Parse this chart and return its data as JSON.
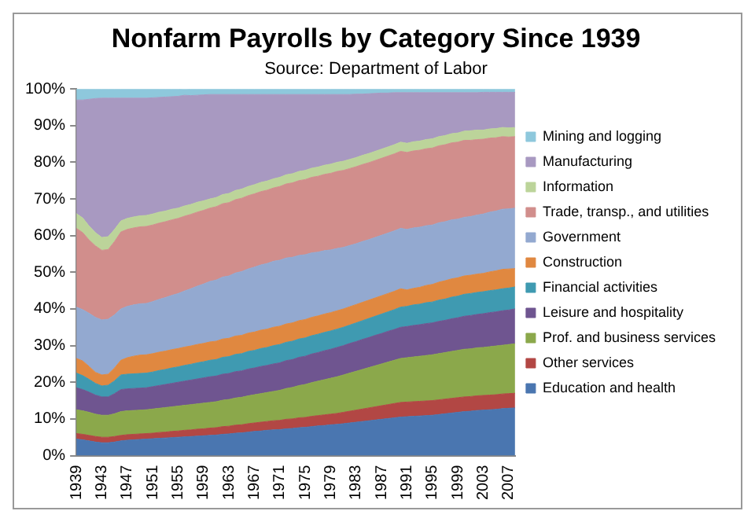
{
  "chart_data": {
    "type": "area",
    "title": "Nonfarm Payrolls by Category Since 1939",
    "subtitle": "Source: Department of Labor",
    "stacked": true,
    "legend": "right",
    "grid": false,
    "categories": [
      "1939",
      null,
      null,
      null,
      "1943",
      null,
      null,
      null,
      "1947",
      null,
      null,
      null,
      "1951",
      null,
      null,
      null,
      "1955",
      null,
      null,
      null,
      "1959",
      null,
      null,
      null,
      "1963",
      null,
      null,
      null,
      "1967",
      null,
      null,
      null,
      "1971",
      null,
      null,
      null,
      "1975",
      null,
      null,
      null,
      "1979",
      null,
      null,
      null,
      "1983",
      null,
      null,
      null,
      "1987",
      null,
      null,
      null,
      "1991",
      null,
      null,
      null,
      "1995",
      null,
      null,
      null,
      "1999",
      null,
      null,
      null,
      "2003",
      null,
      null,
      null,
      "2007",
      null
    ],
    "ylim": [
      0,
      100
    ],
    "yticks": [
      {
        "value": 0,
        "label": "0%"
      },
      {
        "value": 10,
        "label": "10%"
      },
      {
        "value": 20,
        "label": "20%"
      },
      {
        "value": 30,
        "label": "30%"
      },
      {
        "value": 40,
        "label": "40%"
      },
      {
        "value": 50,
        "label": "50%"
      },
      {
        "value": 60,
        "label": "60%"
      },
      {
        "value": 70,
        "label": "70%"
      },
      {
        "value": 80,
        "label": "80%"
      },
      {
        "value": 90,
        "label": "90%"
      },
      {
        "value": 100,
        "label": "100%"
      }
    ],
    "series": [
      {
        "name": "Education and health",
        "color": "#4a76b0",
        "values": [
          4.5,
          4.3,
          4,
          3.7,
          3.5,
          3.5,
          3.7,
          4,
          4.2,
          4.3,
          4.4,
          4.5,
          4.6,
          4.7,
          4.8,
          4.9,
          5,
          5.1,
          5.2,
          5.3,
          5.4,
          5.5,
          5.6,
          5.8,
          5.9,
          6.1,
          6.2,
          6.4,
          6.6,
          6.7,
          6.9,
          7,
          7.1,
          7.3,
          7.4,
          7.6,
          7.7,
          7.9,
          8.1,
          8.2,
          8.4,
          8.5,
          8.7,
          8.9,
          9.1,
          9.3,
          9.5,
          9.7,
          9.9,
          10.1,
          10.3,
          10.5,
          10.6,
          10.7,
          10.8,
          10.9,
          11,
          11.2,
          11.4,
          11.6,
          11.8,
          12,
          12.1,
          12.3,
          12.4,
          12.5,
          12.6,
          12.8,
          12.9,
          13
        ]
      },
      {
        "name": "Other services",
        "color": "#b24744",
        "values": [
          1.5,
          1.5,
          1.5,
          1.5,
          1.5,
          1.5,
          1.5,
          1.5,
          1.5,
          1.5,
          1.5,
          1.5,
          1.5,
          1.6,
          1.6,
          1.7,
          1.7,
          1.8,
          1.8,
          1.9,
          1.9,
          2,
          2,
          2.1,
          2.1,
          2.2,
          2.2,
          2.3,
          2.3,
          2.4,
          2.4,
          2.5,
          2.5,
          2.6,
          2.6,
          2.7,
          2.7,
          2.8,
          2.8,
          2.9,
          2.9,
          3,
          3.1,
          3.2,
          3.3,
          3.4,
          3.5,
          3.6,
          3.7,
          3.8,
          3.9,
          4,
          4,
          4,
          4,
          4,
          4,
          4,
          4,
          4,
          4,
          4,
          4,
          4,
          4,
          4,
          4,
          4,
          4,
          4
        ]
      },
      {
        "name": "Prof. and business services",
        "color": "#8ba84b",
        "values": [
          6.5,
          6.4,
          6.3,
          6.1,
          6,
          6,
          6.2,
          6.5,
          6.5,
          6.5,
          6.5,
          6.5,
          6.6,
          6.6,
          6.7,
          6.7,
          6.8,
          6.8,
          6.9,
          6.9,
          7,
          7,
          7.1,
          7.2,
          7.3,
          7.4,
          7.5,
          7.6,
          7.7,
          7.8,
          7.9,
          8,
          8.2,
          8.4,
          8.6,
          8.8,
          9,
          9.2,
          9.4,
          9.6,
          9.8,
          10,
          10.2,
          10.4,
          10.6,
          10.8,
          11,
          11.2,
          11.4,
          11.6,
          11.8,
          12,
          12.1,
          12.2,
          12.3,
          12.4,
          12.5,
          12.6,
          12.7,
          12.8,
          12.9,
          13,
          13,
          13.1,
          13.1,
          13.2,
          13.3,
          13.3,
          13.4,
          13.5
        ]
      },
      {
        "name": "Leisure and hospitality",
        "color": "#6f5590",
        "values": [
          6,
          5.8,
          5.5,
          5.2,
          5,
          5,
          5.5,
          6,
          6,
          6,
          6,
          6,
          6.1,
          6.2,
          6.3,
          6.4,
          6.5,
          6.6,
          6.7,
          6.8,
          6.9,
          7,
          7,
          7.1,
          7.1,
          7.2,
          7.2,
          7.3,
          7.3,
          7.4,
          7.4,
          7.5,
          7.5,
          7.6,
          7.6,
          7.7,
          7.7,
          7.8,
          7.8,
          7.9,
          7.9,
          8,
          8,
          8.1,
          8.1,
          8.2,
          8.2,
          8.3,
          8.3,
          8.4,
          8.4,
          8.5,
          8.5,
          8.6,
          8.6,
          8.7,
          8.7,
          8.8,
          8.8,
          8.9,
          8.9,
          9,
          9.1,
          9.1,
          9.2,
          9.3,
          9.3,
          9.4,
          9.4,
          9.5
        ]
      },
      {
        "name": "Financial activities",
        "color": "#3f9ab1",
        "values": [
          4,
          3.8,
          3.5,
          3.2,
          3,
          3.2,
          3.5,
          4,
          4,
          4,
          4,
          4,
          4,
          4.1,
          4.1,
          4.2,
          4.2,
          4.3,
          4.3,
          4.4,
          4.4,
          4.5,
          4.5,
          4.6,
          4.6,
          4.7,
          4.7,
          4.8,
          4.8,
          4.9,
          4.9,
          5,
          5,
          5,
          5,
          5,
          5,
          5,
          5,
          5,
          5,
          5,
          5,
          5,
          5.1,
          5.1,
          5.2,
          5.2,
          5.3,
          5.3,
          5.4,
          5.5,
          5.5,
          5.6,
          5.6,
          5.7,
          5.7,
          5.8,
          5.8,
          5.9,
          5.9,
          6,
          6,
          6,
          6,
          6,
          6,
          6,
          6,
          6
        ]
      },
      {
        "name": "Construction",
        "color": "#e08840",
        "values": [
          4,
          4,
          3.5,
          3,
          3,
          3,
          3.5,
          4,
          4.5,
          4.8,
          5,
          5,
          5,
          5,
          5,
          5,
          5,
          5,
          5,
          5,
          5,
          5,
          5,
          5,
          5,
          5,
          5,
          5,
          5,
          5,
          5,
          5,
          5,
          5,
          5,
          5,
          5,
          5,
          5,
          5,
          5,
          5,
          5,
          5,
          5,
          5,
          5,
          5,
          5,
          5,
          5,
          5,
          4.5,
          4.5,
          4.6,
          4.7,
          4.8,
          4.9,
          5,
          5,
          5,
          5,
          5,
          5,
          5,
          5.1,
          5.2,
          5.3,
          5.2,
          5
        ]
      },
      {
        "name": "Government",
        "color": "#93a9d0",
        "values": [
          14,
          14,
          14.5,
          15,
          15,
          15,
          14.5,
          14,
          14,
          14,
          14,
          14,
          14.2,
          14.4,
          14.6,
          14.8,
          15,
          15.3,
          15.6,
          15.9,
          16.2,
          16.5,
          16.7,
          16.9,
          17,
          17.2,
          17.4,
          17.5,
          17.7,
          17.8,
          17.9,
          18,
          18,
          18,
          17.9,
          17.8,
          17.7,
          17.6,
          17.4,
          17.3,
          17.1,
          17,
          16.8,
          16.7,
          16.6,
          16.6,
          16.5,
          16.5,
          16.5,
          16.5,
          16.5,
          16.5,
          16.5,
          16.5,
          16.4,
          16.3,
          16.2,
          16.2,
          16.1,
          16.1,
          16,
          16,
          16,
          16.1,
          16.2,
          16.3,
          16.3,
          16.4,
          16.4,
          16.5
        ]
      },
      {
        "name": "Trade, transp., and utilities",
        "color": "#d18e8c",
        "values": [
          21.5,
          21,
          20,
          19.5,
          19,
          19,
          20,
          21,
          21,
          21,
          21,
          21,
          20.9,
          20.8,
          20.7,
          20.6,
          20.5,
          20.4,
          20.3,
          20.2,
          20.1,
          20,
          20,
          20,
          20,
          20,
          20,
          20,
          20,
          20,
          20,
          20,
          20.1,
          20.2,
          20.3,
          20.4,
          20.5,
          20.6,
          20.7,
          20.8,
          20.9,
          21,
          21,
          21,
          21,
          21,
          21,
          21,
          21,
          21,
          21,
          21,
          21,
          21,
          21,
          21,
          21,
          21,
          21,
          21,
          21,
          21,
          20.8,
          20.6,
          20.4,
          20.2,
          20,
          19.8,
          19.6,
          19.5
        ]
      },
      {
        "name": "Information",
        "color": "#bcd49a",
        "values": [
          4,
          4,
          3.8,
          3.6,
          3.5,
          3.5,
          3.3,
          3,
          3,
          3,
          3,
          3,
          3,
          3,
          2.9,
          2.9,
          2.8,
          2.8,
          2.7,
          2.7,
          2.6,
          2.5,
          2.5,
          2.5,
          2.5,
          2.5,
          2.5,
          2.5,
          2.5,
          2.5,
          2.5,
          2.5,
          2.5,
          2.5,
          2.5,
          2.5,
          2.5,
          2.5,
          2.5,
          2.5,
          2.5,
          2.5,
          2.5,
          2.5,
          2.5,
          2.5,
          2.5,
          2.5,
          2.5,
          2.5,
          2.5,
          2.5,
          2.5,
          2.5,
          2.5,
          2.5,
          2.5,
          2.5,
          2.5,
          2.5,
          2.5,
          2.5,
          2.6,
          2.6,
          2.5,
          2.5,
          2.5,
          2.5,
          2.5,
          2.5
        ]
      },
      {
        "name": "Manufacturing",
        "color": "#a899c1",
        "values": [
          31,
          32.2,
          34.6,
          36.6,
          38,
          37.8,
          35.8,
          33.5,
          32.8,
          32.4,
          32.1,
          32,
          31.7,
          31.3,
          31.1,
          30.7,
          30.5,
          30.2,
          29.7,
          29.2,
          28.9,
          28.5,
          28.1,
          27.3,
          27,
          26.2,
          25.8,
          25.1,
          24.6,
          24,
          23.6,
          23,
          22.6,
          21.9,
          21.6,
          21,
          20.7,
          20.1,
          19.8,
          19.3,
          19,
          18.5,
          18.2,
          17.7,
          17.3,
          16.7,
          16.3,
          15.8,
          15.3,
          14.7,
          14.2,
          13.5,
          13.8,
          13.4,
          13.2,
          12.8,
          12.6,
          12,
          11.7,
          11.2,
          11,
          10.5,
          10.4,
          10.2,
          10.3,
          10,
          9.9,
          9.6,
          9.7,
          9.6
        ]
      },
      {
        "name": "Mining and logging",
        "color": "#8ec8dc",
        "values": [
          3,
          3,
          2.8,
          2.6,
          2.5,
          2.5,
          2.5,
          2.5,
          2.5,
          2.5,
          2.5,
          2.5,
          2.4,
          2.3,
          2.2,
          2.1,
          2,
          1.9,
          1.8,
          1.7,
          1.6,
          1.5,
          1.5,
          1.5,
          1.5,
          1.5,
          1.5,
          1.5,
          1.5,
          1.5,
          1.5,
          1.5,
          1.5,
          1.5,
          1.5,
          1.5,
          1.5,
          1.5,
          1.5,
          1.5,
          1.5,
          1.5,
          1.5,
          1.5,
          1.4,
          1.4,
          1.3,
          1.2,
          1.1,
          1.1,
          1,
          1,
          1,
          1,
          1,
          1,
          1,
          1,
          1,
          1,
          1,
          1,
          1,
          1,
          0.9,
          0.9,
          0.9,
          0.9,
          0.9,
          0.9
        ]
      }
    ]
  }
}
